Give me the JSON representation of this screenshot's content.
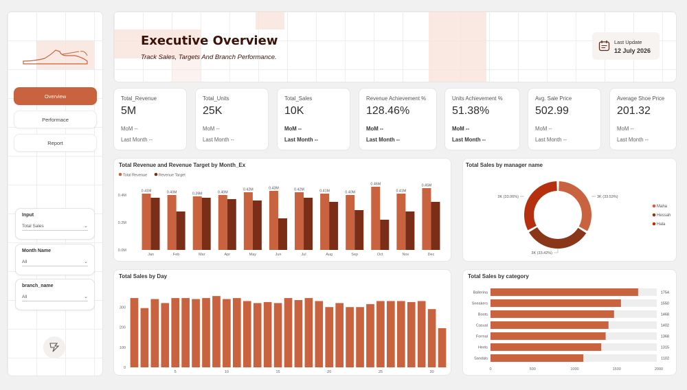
{
  "header": {
    "title": "Executive Overview",
    "subtitle": "Track Sales, Targets And Branch Performance.",
    "last_update_label": "Last Update",
    "last_update_value": "12 July 2026"
  },
  "nav": {
    "overview": "Overview",
    "performance": "Performace",
    "report": "Report"
  },
  "filters": [
    {
      "label": "Input",
      "value": "Total Sales"
    },
    {
      "label": "Month Name",
      "value": "All"
    },
    {
      "label": "branch_name",
      "value": "All"
    }
  ],
  "kpis": [
    {
      "label": "Total_Revenue",
      "value": "5M",
      "mom": "MoM --",
      "last": "Last Month --"
    },
    {
      "label": "Total_Units",
      "value": "25K",
      "mom": "MoM --",
      "last": "Last Month --"
    },
    {
      "label": "Total_Sales",
      "value": "10K",
      "mom": "MoM --",
      "last": "Last Month --"
    },
    {
      "label": "Revenue Achievement %",
      "value": "128.46%",
      "mom": "MoM --",
      "last": "Last Month --"
    },
    {
      "label": "Units Achievement %",
      "value": "51.38%",
      "mom": "MoM --",
      "last": "Last Month --"
    },
    {
      "label": "Avg. Sale Price",
      "value": "502.99",
      "mom": "MoM --",
      "last": "Last Month --"
    },
    {
      "label": "Average Shoe Price",
      "value": "201.32",
      "mom": "MoM --",
      "last": "Last Month --"
    }
  ],
  "colors": {
    "accent": "#c8623f",
    "dark": "#7a2e17",
    "mid": "#8a3719",
    "red": "#b5300f",
    "track": "#eeeeee"
  },
  "chart_data": [
    {
      "type": "bar",
      "title": "Total Revenue and Revenue Target by Month_Ex",
      "categories": [
        "Jan",
        "Feb",
        "Mar",
        "Apr",
        "May",
        "Jun",
        "Jul",
        "Aug",
        "Sep",
        "Oct",
        "Nov",
        "Dec"
      ],
      "series": [
        {
          "name": "Total Revenue",
          "values": [
            0.41,
            0.4,
            0.39,
            0.4,
            0.42,
            0.43,
            0.42,
            0.41,
            0.4,
            0.46,
            0.41,
            0.45
          ]
        },
        {
          "name": "Revenue Target",
          "values": [
            0.38,
            0.28,
            0.38,
            0.37,
            0.36,
            0.23,
            0.38,
            0.35,
            0.29,
            0.22,
            0.28,
            0.35
          ]
        }
      ],
      "data_labels": [
        "0.41M",
        "0.40M",
        "0.39M",
        "0.40M",
        "0.42M",
        "0.43M",
        "0.42M",
        "0.41M",
        "0.40M",
        "0.46M",
        "0.41M",
        "0.45M"
      ],
      "yticks": [
        "0.0M",
        "0.2M",
        "0.4M"
      ],
      "ylim": [
        0,
        0.5
      ],
      "legend": "top-left"
    },
    {
      "type": "pie",
      "title": "Total Sales by manager name",
      "labels": [
        "Maha",
        "Hessah",
        "Hala"
      ],
      "values": [
        33.53,
        33.42,
        33.06
      ],
      "slice_labels": [
        "3K (33.53%)",
        "3K (33.42%)",
        "3K (33.06%)"
      ],
      "legend": "right"
    },
    {
      "type": "bar",
      "title": "Total Sales by Day",
      "x": [
        1,
        2,
        3,
        4,
        5,
        6,
        7,
        8,
        9,
        10,
        11,
        12,
        13,
        14,
        15,
        16,
        17,
        18,
        19,
        20,
        21,
        22,
        23,
        24,
        25,
        26,
        27,
        28,
        29,
        30,
        31
      ],
      "values": [
        345,
        295,
        340,
        320,
        345,
        345,
        340,
        345,
        355,
        340,
        345,
        330,
        320,
        325,
        320,
        345,
        335,
        345,
        330,
        300,
        320,
        300,
        300,
        315,
        330,
        330,
        330,
        325,
        330,
        290,
        195
      ],
      "xticks": [
        "5",
        "10",
        "15",
        "20",
        "25",
        "30"
      ],
      "yticks": [
        "0",
        "100",
        "200",
        "300"
      ],
      "ylim": [
        0,
        400
      ]
    },
    {
      "type": "bar",
      "orientation": "horizontal",
      "title": "Total Sales by category",
      "categories": [
        "Ballerina",
        "Sneakers",
        "Boots",
        "Casual",
        "Formal",
        "Heels",
        "Sandals"
      ],
      "values": [
        1754,
        1550,
        1468,
        1402,
        1368,
        1315,
        1102
      ],
      "xticks": [
        "0",
        "500",
        "1000",
        "1500",
        "2000"
      ],
      "xlim": [
        0,
        2000
      ]
    }
  ]
}
